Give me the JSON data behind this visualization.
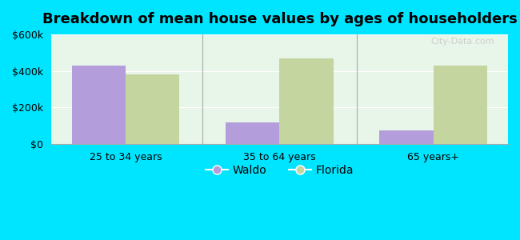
{
  "title": "Breakdown of mean house values by ages of householders",
  "categories": [
    "25 to 34 years",
    "35 to 64 years",
    "65 years+"
  ],
  "waldo_values": [
    430000,
    120000,
    75000
  ],
  "florida_values": [
    380000,
    470000,
    430000
  ],
  "waldo_color": "#b39ddb",
  "florida_color": "#c5d5a0",
  "background_outer": "#00e5ff",
  "background_inner": "#e8f5e9",
  "ylim": [
    0,
    600000
  ],
  "yticks": [
    0,
    200000,
    400000,
    600000
  ],
  "ytick_labels": [
    "$0",
    "$200k",
    "$400k",
    "$600k"
  ],
  "legend_labels": [
    "Waldo",
    "Florida"
  ],
  "bar_width": 0.35,
  "title_fontsize": 13,
  "tick_fontsize": 9,
  "legend_fontsize": 10
}
